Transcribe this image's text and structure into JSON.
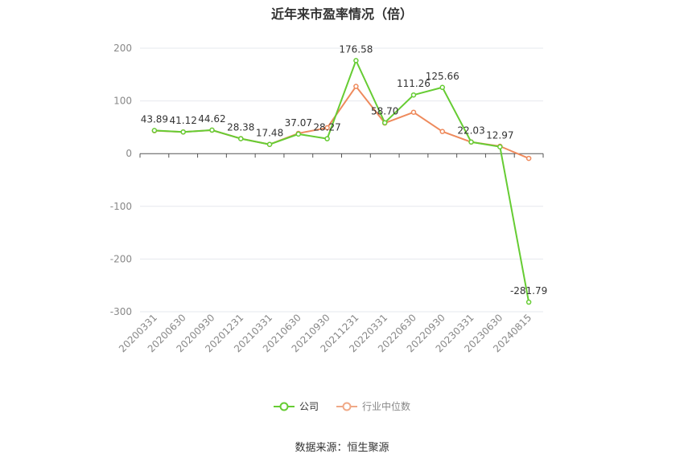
{
  "title": "近年来市盈率情况（倍）",
  "source": "数据来源：恒生聚源",
  "colors": {
    "company": "#66cc33",
    "industry": "#ee8a5c",
    "grid": "#e6e8ee",
    "axis": "#555555"
  },
  "legend": [
    {
      "label": "公司",
      "color": "#66cc33"
    },
    {
      "label": "行业中位数",
      "color": "#f0a987"
    }
  ],
  "chart_data": {
    "type": "line",
    "categories": [
      "20200331",
      "20200630",
      "20200930",
      "20201231",
      "20210331",
      "20210630",
      "20210930",
      "20211231",
      "20220331",
      "20220630",
      "20220930",
      "20230331",
      "20230630",
      "20240815"
    ],
    "ylim": [
      -300,
      200
    ],
    "yticks": [
      200,
      100,
      0,
      -100,
      -200,
      -300
    ],
    "series": [
      {
        "name": "公司",
        "values": [
          43.89,
          41.12,
          44.62,
          28.38,
          17.48,
          37.07,
          28.27,
          176.58,
          58.7,
          111.26,
          125.66,
          22.03,
          12.97,
          -281.79
        ],
        "labels": [
          "43.89",
          "41.12",
          "44.62",
          "28.38",
          "17.48",
          "37.07",
          "28.27",
          "176.58",
          "58.70",
          "111.26",
          "125.66",
          "22.03",
          "12.97",
          "-281.79"
        ]
      },
      {
        "name": "行业中位数",
        "values": [
          43.5,
          41.0,
          44.5,
          28.5,
          17.5,
          38.5,
          49.0,
          127.5,
          58.0,
          78.5,
          42.0,
          22.0,
          14.0,
          -9.0
        ]
      }
    ]
  }
}
